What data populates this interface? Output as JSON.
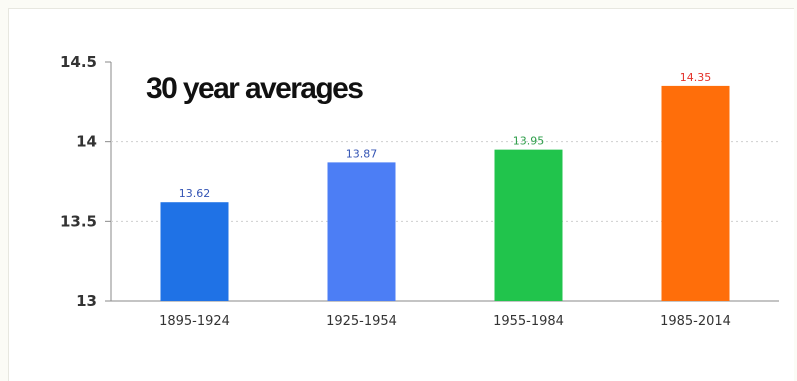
{
  "chart_data": {
    "type": "bar",
    "title": "30 year averages",
    "categories": [
      "1895-1924",
      "1925-1954",
      "1955-1984",
      "1985-2014"
    ],
    "values": [
      13.62,
      13.87,
      13.95,
      14.35
    ],
    "data_labels": [
      "13.62",
      "13.87",
      "13.95",
      "14.35"
    ],
    "bar_colors": [
      "#1f72e6",
      "#4c7ef5",
      "#21c44c",
      "#ff6e0a"
    ],
    "label_colors": [
      "#3454b4",
      "#3454b4",
      "#2e9e4a",
      "#e4322a"
    ],
    "ylim": [
      13,
      14.5
    ],
    "yticks": [
      {
        "value": 13,
        "label": "13"
      },
      {
        "value": 13.5,
        "label": "13.5"
      },
      {
        "value": 14,
        "label": "14"
      },
      {
        "value": 14.5,
        "label": "14.5"
      }
    ],
    "grid": "dotted horizontal at 14",
    "legend": "none"
  }
}
